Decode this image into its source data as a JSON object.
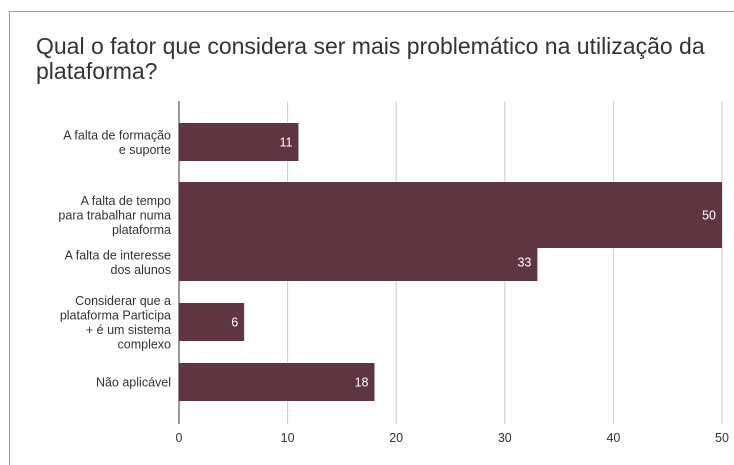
{
  "chart_data": {
    "type": "bar",
    "orientation": "horizontal",
    "title": "Qual o fator que considera ser mais problemático na utilização da plataforma?",
    "categories": [
      [
        "A falta de formação",
        "e suporte"
      ],
      [
        "A falta de tempo",
        "para trabalhar numa",
        "plataforma"
      ],
      [
        "A falta de interesse",
        "dos alunos"
      ],
      [
        "Considerar que a",
        "plataforma Participa",
        "+ é um sistema",
        "complexo"
      ],
      [
        "Não aplicável"
      ]
    ],
    "values": [
      11,
      50,
      33,
      6,
      18
    ],
    "x_ticks": [
      "0",
      "10",
      "20",
      "30",
      "40",
      "50"
    ],
    "xlim": [
      0,
      50
    ],
    "grid": true,
    "bar_color": "#5e3540",
    "legend": "none"
  }
}
